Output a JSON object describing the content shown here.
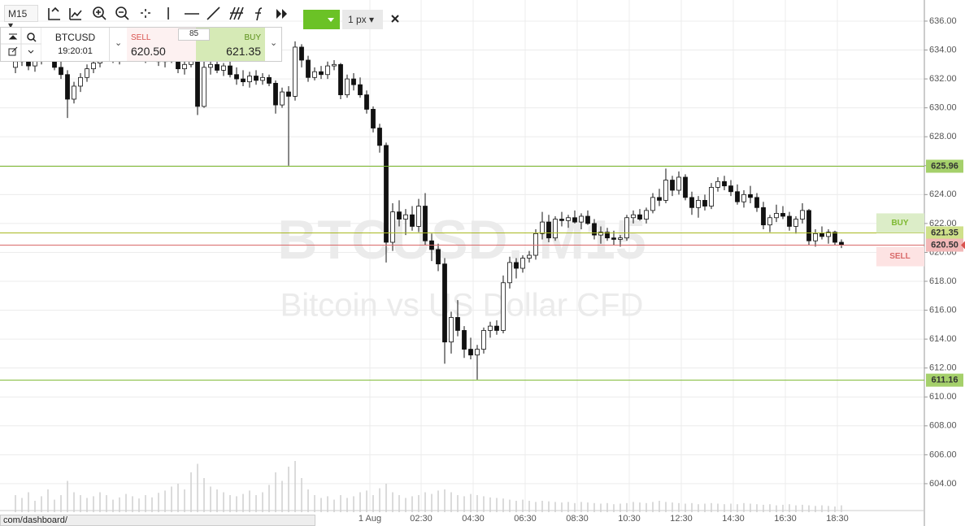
{
  "chart_data": {
    "type": "candlestick",
    "watermark": {
      "symbol": "BTCUSD, M15",
      "description": "Bitcoin vs US Dollar CFD"
    },
    "xlim": [
      -2.375,
      139.75
    ],
    "xticks": [
      {
        "value": 54.5,
        "label": "1 Aug"
      },
      {
        "value": 62.375,
        "label": "02:30"
      },
      {
        "value": 70.375,
        "label": "04:30"
      },
      {
        "value": 78.375,
        "label": "06:30"
      },
      {
        "value": 86.375,
        "label": "08:30"
      },
      {
        "value": 94.375,
        "label": "10:30"
      },
      {
        "value": 102.375,
        "label": "12:30"
      },
      {
        "value": 110.375,
        "label": "14:30"
      },
      {
        "value": 118.375,
        "label": "16:30"
      },
      {
        "value": 126.375,
        "label": "18:30"
      }
    ],
    "ylim": [
      602.14,
      637.46
    ],
    "yticks": [
      {
        "value": 604,
        "label": "604.00"
      },
      {
        "value": 606,
        "label": "606.00"
      },
      {
        "value": 608,
        "label": "608.00"
      },
      {
        "value": 610,
        "label": "610.00"
      },
      {
        "value": 612,
        "label": "612.00"
      },
      {
        "value": 614,
        "label": "614.00"
      },
      {
        "value": 616,
        "label": "616.00"
      },
      {
        "value": 618,
        "label": "618.00"
      },
      {
        "value": 620,
        "label": "620.00"
      },
      {
        "value": 622,
        "label": "622.00"
      },
      {
        "value": 624,
        "label": "624.00"
      },
      {
        "value": 626,
        "label": "626.00"
      },
      {
        "value": 628,
        "label": "628.00"
      },
      {
        "value": 630,
        "label": "630.00"
      },
      {
        "value": 632,
        "label": "632.00"
      },
      {
        "value": 634,
        "label": "634.00"
      },
      {
        "value": 636,
        "label": "636.00"
      }
    ],
    "grid": true,
    "up_color": "#ffffff",
    "down_color": "#111111",
    "volume_color": "#cfcfcf",
    "levels": [
      {
        "value": 625.96,
        "label": "625.96",
        "color": "#7cb82f",
        "box": "#a5d06b"
      },
      {
        "value": 621.35,
        "label": "621.35",
        "color": "#a8b820",
        "box": "#cfe08a"
      },
      {
        "value": 620.5,
        "label": "620.50",
        "color": "#d96a6a",
        "box": "#f2b8b8"
      },
      {
        "value": 611.16,
        "label": "611.16",
        "color": "#7cb82f",
        "box": "#a5d06b"
      }
    ],
    "buy_tag": "BUY",
    "sell_tag": "SELL",
    "candles": [
      [
        632.8,
        633.6,
        632.4,
        633.2
      ],
      [
        633.2,
        633.9,
        632.9,
        633.5
      ],
      [
        633.5,
        634.0,
        632.6,
        632.9
      ],
      [
        632.9,
        633.5,
        632.5,
        633.3
      ],
      [
        633.3,
        634.2,
        633.0,
        633.8
      ],
      [
        633.8,
        634.1,
        633.2,
        633.4
      ],
      [
        633.4,
        633.7,
        632.6,
        632.8
      ],
      [
        632.8,
        633.2,
        632.0,
        632.3
      ],
      [
        632.3,
        632.6,
        629.3,
        630.6
      ],
      [
        630.6,
        631.8,
        630.3,
        631.5
      ],
      [
        631.5,
        632.4,
        631.1,
        632.1
      ],
      [
        632.1,
        633.0,
        631.8,
        632.7
      ],
      [
        632.7,
        633.4,
        632.4,
        633.1
      ],
      [
        633.1,
        633.8,
        632.8,
        633.5
      ],
      [
        633.5,
        634.1,
        633.2,
        633.8
      ],
      [
        633.8,
        634.0,
        633.1,
        633.3
      ],
      [
        633.3,
        633.9,
        633.0,
        633.6
      ],
      [
        633.6,
        634.3,
        633.3,
        634.0
      ],
      [
        634.0,
        634.4,
        633.5,
        633.7
      ],
      [
        633.7,
        634.0,
        633.2,
        633.4
      ],
      [
        633.4,
        633.9,
        633.1,
        633.7
      ],
      [
        633.7,
        634.1,
        633.3,
        633.5
      ],
      [
        633.5,
        633.8,
        632.9,
        633.2
      ],
      [
        633.2,
        633.7,
        632.8,
        633.5
      ],
      [
        633.5,
        634.0,
        633.1,
        633.3
      ],
      [
        633.3,
        633.6,
        632.4,
        632.7
      ],
      [
        632.7,
        633.3,
        632.3,
        633.0
      ],
      [
        633.0,
        634.2,
        632.8,
        633.9
      ],
      [
        633.9,
        634.1,
        629.5,
        630.1
      ],
      [
        630.1,
        633.2,
        630.0,
        632.8
      ],
      [
        632.8,
        633.4,
        632.3,
        633.0
      ],
      [
        633.0,
        633.3,
        632.4,
        632.6
      ],
      [
        632.6,
        633.1,
        632.2,
        632.9
      ],
      [
        632.9,
        633.2,
        632.1,
        632.3
      ],
      [
        632.3,
        632.8,
        631.6,
        632.0
      ],
      [
        632.0,
        632.6,
        631.5,
        631.8
      ],
      [
        631.8,
        632.5,
        631.4,
        632.2
      ],
      [
        632.2,
        632.6,
        631.6,
        631.9
      ],
      [
        631.9,
        632.4,
        631.6,
        632.1
      ],
      [
        632.1,
        632.3,
        631.5,
        631.7
      ],
      [
        631.7,
        631.9,
        629.6,
        630.2
      ],
      [
        630.2,
        631.4,
        630.0,
        631.1
      ],
      [
        631.1,
        631.5,
        626.0,
        630.8
      ],
      [
        630.8,
        634.6,
        630.5,
        634.2
      ],
      [
        634.2,
        634.4,
        632.8,
        633.3
      ],
      [
        633.3,
        633.6,
        631.8,
        632.1
      ],
      [
        632.1,
        632.8,
        631.9,
        632.5
      ],
      [
        632.5,
        632.9,
        632.0,
        632.3
      ],
      [
        632.3,
        633.2,
        632.0,
        632.9
      ],
      [
        632.9,
        633.3,
        632.6,
        633.0
      ],
      [
        633.0,
        633.1,
        630.6,
        630.9
      ],
      [
        630.9,
        632.3,
        630.7,
        632.0
      ],
      [
        632.0,
        632.4,
        631.2,
        631.6
      ],
      [
        631.6,
        632.1,
        630.7,
        630.9
      ],
      [
        630.9,
        631.2,
        629.6,
        629.9
      ],
      [
        629.9,
        630.1,
        628.3,
        628.6
      ],
      [
        628.6,
        628.9,
        626.9,
        627.4
      ],
      [
        627.4,
        627.6,
        619.3,
        620.7
      ],
      [
        620.7,
        623.4,
        620.1,
        622.8
      ],
      [
        622.8,
        623.6,
        621.8,
        622.3
      ],
      [
        622.3,
        623.0,
        621.2,
        622.6
      ],
      [
        622.6,
        623.2,
        621.5,
        621.8
      ],
      [
        621.8,
        623.7,
        621.4,
        623.2
      ],
      [
        623.2,
        624.1,
        620.5,
        620.8
      ],
      [
        620.8,
        621.3,
        619.4,
        620.2
      ],
      [
        620.2,
        620.6,
        618.7,
        619.2
      ],
      [
        619.2,
        619.6,
        612.3,
        613.8
      ],
      [
        613.8,
        615.9,
        613.0,
        615.5
      ],
      [
        615.5,
        616.7,
        614.2,
        614.6
      ],
      [
        614.6,
        614.9,
        612.7,
        613.3
      ],
      [
        613.3,
        614.1,
        612.6,
        612.9
      ],
      [
        612.9,
        613.6,
        611.2,
        613.3
      ],
      [
        613.3,
        614.8,
        613.0,
        614.6
      ],
      [
        614.6,
        615.2,
        614.1,
        614.9
      ],
      [
        614.9,
        615.3,
        614.3,
        614.6
      ],
      [
        614.6,
        618.4,
        614.4,
        617.9
      ],
      [
        617.9,
        619.7,
        617.5,
        619.3
      ],
      [
        619.3,
        619.6,
        618.2,
        618.9
      ],
      [
        618.9,
        619.8,
        618.6,
        619.6
      ],
      [
        619.6,
        620.1,
        619.3,
        619.8
      ],
      [
        619.8,
        621.6,
        619.5,
        621.3
      ],
      [
        621.3,
        622.8,
        620.9,
        622.1
      ],
      [
        622.1,
        622.6,
        620.7,
        621.0
      ],
      [
        621.0,
        622.5,
        620.8,
        622.3
      ],
      [
        622.3,
        622.8,
        621.8,
        622.2
      ],
      [
        622.2,
        622.6,
        621.7,
        622.4
      ],
      [
        622.4,
        622.9,
        622.0,
        622.1
      ],
      [
        622.1,
        622.7,
        621.6,
        622.5
      ],
      [
        622.5,
        622.9,
        621.9,
        622.0
      ],
      [
        622.0,
        622.3,
        620.9,
        621.2
      ],
      [
        621.2,
        621.8,
        620.6,
        621.4
      ],
      [
        621.4,
        621.7,
        620.8,
        621.0
      ],
      [
        621.0,
        621.5,
        620.5,
        620.9
      ],
      [
        620.9,
        621.2,
        620.4,
        621.0
      ],
      [
        621.0,
        622.6,
        620.8,
        622.4
      ],
      [
        622.4,
        622.9,
        622.0,
        622.6
      ],
      [
        622.6,
        623.0,
        622.2,
        622.3
      ],
      [
        622.3,
        623.1,
        622.0,
        622.9
      ],
      [
        622.9,
        624.1,
        622.7,
        623.8
      ],
      [
        623.8,
        624.4,
        623.2,
        623.6
      ],
      [
        623.6,
        625.8,
        623.4,
        625.0
      ],
      [
        625.0,
        625.3,
        623.9,
        624.3
      ],
      [
        624.3,
        625.6,
        624.0,
        625.2
      ],
      [
        625.2,
        625.4,
        623.6,
        623.8
      ],
      [
        623.8,
        624.2,
        622.6,
        623.1
      ],
      [
        623.1,
        623.9,
        622.4,
        623.6
      ],
      [
        623.6,
        624.0,
        622.9,
        623.2
      ],
      [
        623.2,
        624.8,
        623.0,
        624.5
      ],
      [
        624.5,
        625.2,
        624.2,
        624.9
      ],
      [
        624.9,
        625.3,
        624.3,
        624.6
      ],
      [
        624.6,
        625.0,
        623.9,
        624.2
      ],
      [
        624.2,
        624.7,
        623.3,
        623.5
      ],
      [
        623.5,
        624.3,
        623.1,
        624.0
      ],
      [
        624.0,
        624.6,
        623.4,
        623.8
      ],
      [
        623.8,
        624.1,
        622.8,
        623.1
      ],
      [
        623.1,
        623.5,
        621.6,
        621.9
      ],
      [
        621.9,
        622.6,
        621.4,
        622.4
      ],
      [
        622.4,
        623.3,
        622.1,
        622.7
      ],
      [
        622.7,
        623.2,
        622.3,
        622.5
      ],
      [
        622.5,
        622.8,
        621.5,
        621.8
      ],
      [
        621.8,
        622.5,
        621.3,
        622.3
      ],
      [
        622.3,
        623.4,
        622.0,
        622.9
      ],
      [
        622.9,
        623.0,
        620.5,
        620.8
      ],
      [
        620.8,
        621.6,
        620.4,
        621.3
      ],
      [
        621.3,
        621.8,
        620.9,
        621.1
      ],
      [
        621.1,
        621.6,
        620.6,
        621.4
      ],
      [
        621.4,
        621.5,
        620.5,
        620.7
      ],
      [
        620.7,
        620.9,
        620.3,
        620.5
      ]
    ],
    "volume": [
      30,
      25,
      35,
      20,
      28,
      40,
      22,
      30,
      55,
      35,
      30,
      25,
      28,
      35,
      30,
      22,
      26,
      32,
      28,
      24,
      30,
      26,
      34,
      38,
      45,
      50,
      40,
      70,
      85,
      60,
      45,
      40,
      35,
      30,
      28,
      32,
      38,
      30,
      35,
      48,
      70,
      55,
      80,
      90,
      60,
      40,
      30,
      25,
      28,
      22,
      30,
      25,
      28,
      35,
      38,
      30,
      42,
      50,
      35,
      30,
      25,
      28,
      30,
      35,
      32,
      38,
      40,
      35,
      30,
      28,
      32,
      30,
      28,
      26,
      25,
      24,
      22,
      20,
      22,
      20,
      18,
      20,
      19,
      18,
      17,
      18,
      16,
      18,
      17,
      16,
      15,
      16,
      14,
      15,
      16,
      18,
      17,
      16,
      18,
      20,
      18,
      17,
      16,
      15,
      16,
      14,
      15,
      16,
      15,
      14,
      15,
      14,
      16,
      15,
      14,
      13,
      14,
      12,
      13,
      14,
      12,
      13,
      12,
      11,
      12,
      11,
      10,
      12
    ]
  },
  "toolbar": {
    "timeframe": "M15",
    "line_width": "1 px"
  },
  "instrument_panel": {
    "symbol": "BTCUSD",
    "time": "19:20:01",
    "sell_label": "SELL",
    "sell_price": "620.50",
    "spread": "85",
    "buy_label": "BUY",
    "buy_price": "621.35"
  },
  "status_bar": {
    "url": "com/dashboard/"
  }
}
